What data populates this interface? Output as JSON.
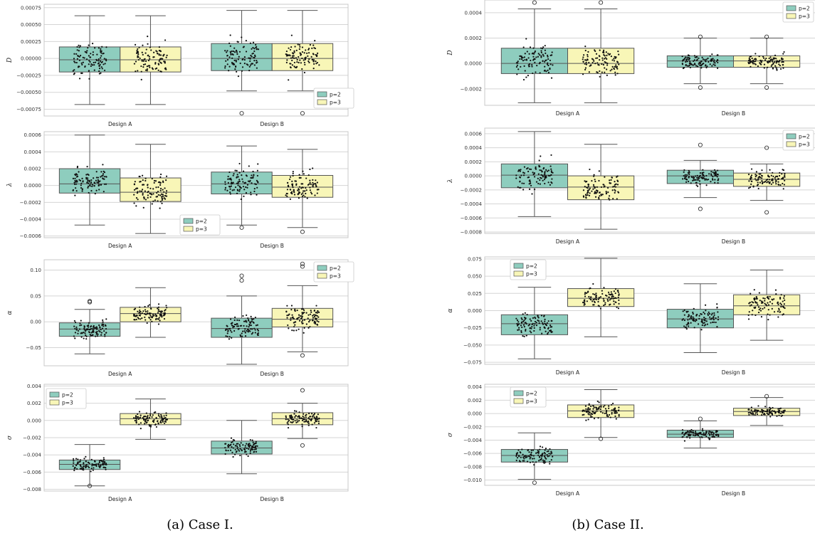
{
  "captions": [
    "(a) Case I.",
    "(b) Case II."
  ],
  "colors": {
    "p2": "#8ecdbe",
    "p3": "#f8f6b7",
    "edge": "#555555",
    "dot": "#111111",
    "grid": "#d5d5d5",
    "frame": "#c8c8c8"
  },
  "chart_data": [
    {
      "id": "I-D",
      "type": "box",
      "title": "",
      "xlabel": "",
      "ylabel": "D",
      "categories": [
        "Design A",
        "Design B"
      ],
      "ylim": [
        -0.00085,
        0.0008
      ],
      "yticks": [
        -0.00075,
        -0.0005,
        -0.00025,
        0.0,
        0.00025,
        0.0005,
        0.00075
      ],
      "yticklabels": [
        "−0.00075",
        "−0.00050",
        "−0.00025",
        "0.00000",
        "0.00025",
        "0.00050",
        "0.00075"
      ],
      "legend": {
        "position": "bottom-right",
        "entries": [
          "p=2",
          "p=3"
        ]
      },
      "series": [
        {
          "name": "p=2",
          "boxes": [
            {
              "whislo": -0.00068,
              "q1": -0.0002,
              "med": -2e-05,
              "q3": 0.00017,
              "whishi": 0.00063,
              "fliers": []
            },
            {
              "whislo": -0.00048,
              "q1": -0.00018,
              "med": 0.0,
              "q3": 0.00022,
              "whishi": 0.00071,
              "fliers": [
                -0.00081
              ]
            }
          ]
        },
        {
          "name": "p=3",
          "boxes": [
            {
              "whislo": -0.00068,
              "q1": -0.0002,
              "med": -2e-05,
              "q3": 0.00017,
              "whishi": 0.00063,
              "fliers": []
            },
            {
              "whislo": -0.00048,
              "q1": -0.00018,
              "med": 0.0,
              "q3": 0.00022,
              "whishi": 0.00071,
              "fliers": [
                -0.00081
              ]
            }
          ]
        }
      ]
    },
    {
      "id": "I-lambda",
      "type": "box",
      "title": "",
      "xlabel": "",
      "ylabel": "λ",
      "categories": [
        "Design A",
        "Design B"
      ],
      "ylim": [
        -0.00062,
        0.00064
      ],
      "yticks": [
        -0.0006,
        -0.0004,
        -0.0002,
        0.0,
        0.0002,
        0.0004,
        0.0006
      ],
      "yticklabels": [
        "−0.0006",
        "−0.0004",
        "−0.0002",
        "0.0000",
        "0.0002",
        "0.0004",
        "0.0006"
      ],
      "legend": {
        "position": "lower-center",
        "entries": [
          "p=2",
          "p=3"
        ]
      },
      "series": [
        {
          "name": "p=2",
          "boxes": [
            {
              "whislo": -0.00047,
              "q1": -9e-05,
              "med": 2e-05,
              "q3": 0.0002,
              "whishi": 0.0006,
              "fliers": []
            },
            {
              "whislo": -0.00047,
              "q1": -0.0001,
              "med": 2e-05,
              "q3": 0.00016,
              "whishi": 0.00047,
              "fliers": [
                -0.0005
              ]
            }
          ]
        },
        {
          "name": "p=3",
          "boxes": [
            {
              "whislo": -0.00057,
              "q1": -0.00019,
              "med": -8e-05,
              "q3": 9e-05,
              "whishi": 0.00049,
              "fliers": []
            },
            {
              "whislo": -0.0005,
              "q1": -0.00014,
              "med": -2e-05,
              "q3": 0.00012,
              "whishi": 0.00043,
              "fliers": [
                -0.00055
              ]
            }
          ]
        }
      ]
    },
    {
      "id": "I-alpha",
      "type": "box",
      "title": "",
      "xlabel": "",
      "ylabel": "α",
      "categories": [
        "Design A",
        "Design B"
      ],
      "ylim": [
        -0.085,
        0.12
      ],
      "yticks": [
        -0.05,
        0.0,
        0.05,
        0.1
      ],
      "yticklabels": [
        "−0.05",
        "0.00",
        "0.05",
        "0.10"
      ],
      "legend": {
        "position": "top-right",
        "entries": [
          "p=2",
          "p=3"
        ]
      },
      "series": [
        {
          "name": "p=2",
          "boxes": [
            {
              "whislo": -0.062,
              "q1": -0.028,
              "med": -0.014,
              "q3": -0.002,
              "whishi": 0.024,
              "fliers": [
                0.038,
                0.04
              ]
            },
            {
              "whislo": -0.082,
              "q1": -0.03,
              "med": -0.013,
              "q3": 0.007,
              "whishi": 0.05,
              "fliers": [
                0.08,
                0.089
              ]
            }
          ]
        },
        {
          "name": "p=3",
          "boxes": [
            {
              "whislo": -0.03,
              "q1": 0.0,
              "med": 0.016,
              "q3": 0.028,
              "whishi": 0.066,
              "fliers": []
            },
            {
              "whislo": -0.058,
              "q1": -0.01,
              "med": 0.005,
              "q3": 0.026,
              "whishi": 0.07,
              "fliers": [
                -0.065,
                0.107,
                0.112
              ]
            }
          ]
        }
      ]
    },
    {
      "id": "I-sigma",
      "type": "box",
      "title": "",
      "xlabel": "",
      "ylabel": "σ",
      "categories": [
        "Design A",
        "Design B"
      ],
      "ylim": [
        -0.0082,
        0.0042
      ],
      "yticks": [
        -0.008,
        -0.006,
        -0.004,
        -0.002,
        0.0,
        0.002,
        0.004
      ],
      "yticklabels": [
        "−0.008",
        "−0.006",
        "−0.004",
        "−0.002",
        "0.000",
        "0.002",
        "0.004"
      ],
      "legend": {
        "position": "top-left",
        "entries": [
          "p=2",
          "p=3"
        ]
      },
      "series": [
        {
          "name": "p=2",
          "boxes": [
            {
              "whislo": -0.0076,
              "q1": -0.0057,
              "med": -0.0051,
              "q3": -0.0046,
              "whishi": -0.0028,
              "fliers": [
                -0.0076
              ]
            },
            {
              "whislo": -0.0062,
              "q1": -0.0039,
              "med": -0.0032,
              "q3": -0.0024,
              "whishi": 0.0,
              "fliers": []
            }
          ]
        },
        {
          "name": "p=3",
          "boxes": [
            {
              "whislo": -0.0022,
              "q1": -0.0005,
              "med": 0.0002,
              "q3": 0.0008,
              "whishi": 0.0025,
              "fliers": []
            },
            {
              "whislo": -0.0021,
              "q1": -0.0005,
              "med": 0.0002,
              "q3": 0.0009,
              "whishi": 0.002,
              "fliers": [
                -0.0029,
                0.0035
              ]
            }
          ]
        }
      ]
    },
    {
      "id": "II-D",
      "type": "box",
      "title": "",
      "xlabel": "",
      "ylabel": "D",
      "categories": [
        "Design A",
        "Design B"
      ],
      "ylim": [
        -0.00033,
        0.0005
      ],
      "yticks": [
        -0.0002,
        0.0,
        0.0002,
        0.0004
      ],
      "yticklabels": [
        "−0.0002",
        "0.0000",
        "0.0002",
        "0.0004"
      ],
      "legend": {
        "position": "top-right",
        "entries": [
          "p=2",
          "p=3"
        ]
      },
      "series": [
        {
          "name": "p=2",
          "boxes": [
            {
              "whislo": -0.00031,
              "q1": -8e-05,
              "med": 0.0,
              "q3": 0.00012,
              "whishi": 0.00043,
              "fliers": [
                0.00048
              ]
            },
            {
              "whislo": -0.00016,
              "q1": -3e-05,
              "med": 2e-05,
              "q3": 6e-05,
              "whishi": 0.0002,
              "fliers": [
                -0.00019,
                0.00021
              ]
            }
          ]
        },
        {
          "name": "p=3",
          "boxes": [
            {
              "whislo": -0.00031,
              "q1": -8e-05,
              "med": 0.0,
              "q3": 0.00012,
              "whishi": 0.00043,
              "fliers": [
                0.00048
              ]
            },
            {
              "whislo": -0.00016,
              "q1": -3e-05,
              "med": 2e-05,
              "q3": 6e-05,
              "whishi": 0.0002,
              "fliers": [
                -0.00019,
                0.00021
              ]
            }
          ]
        }
      ]
    },
    {
      "id": "II-lambda",
      "type": "box",
      "title": "",
      "xlabel": "",
      "ylabel": "λ",
      "categories": [
        "Design A",
        "Design B"
      ],
      "ylim": [
        -0.00082,
        0.00068
      ],
      "yticks": [
        -0.0008,
        -0.0006,
        -0.0004,
        -0.0002,
        0.0,
        0.0002,
        0.0004,
        0.0006
      ],
      "yticklabels": [
        "−0.0008",
        "−0.0006",
        "−0.0004",
        "−0.0002",
        "0.0000",
        "0.0002",
        "0.0004",
        "0.0006"
      ],
      "legend": {
        "position": "top-right",
        "entries": [
          "p=2",
          "p=3"
        ]
      },
      "series": [
        {
          "name": "p=2",
          "boxes": [
            {
              "whislo": -0.00058,
              "q1": -0.00017,
              "med": 1e-05,
              "q3": 0.00017,
              "whishi": 0.00063,
              "fliers": []
            },
            {
              "whislo": -0.00031,
              "q1": -0.00011,
              "med": 0.0,
              "q3": 8e-05,
              "whishi": 0.00022,
              "fliers": [
                -0.00047,
                0.00044
              ]
            }
          ]
        },
        {
          "name": "p=3",
          "boxes": [
            {
              "whislo": -0.00076,
              "q1": -0.00034,
              "med": -0.00016,
              "q3": 0.0,
              "whishi": 0.00045,
              "fliers": []
            },
            {
              "whislo": -0.00035,
              "q1": -0.00015,
              "med": -5e-05,
              "q3": 4e-05,
              "whishi": 0.00017,
              "fliers": [
                -0.00052,
                0.0004
              ]
            }
          ]
        }
      ]
    },
    {
      "id": "II-alpha",
      "type": "box",
      "title": "",
      "xlabel": "",
      "ylabel": "α",
      "categories": [
        "Design A",
        "Design B"
      ],
      "ylim": [
        -0.078,
        0.078
      ],
      "yticks": [
        -0.075,
        -0.05,
        -0.025,
        0.0,
        0.025,
        0.05,
        0.075
      ],
      "yticklabels": [
        "−0.075",
        "−0.050",
        "−0.025",
        "0.000",
        "0.025",
        "0.050",
        "0.075"
      ],
      "legend": {
        "position": "top-left",
        "entries": [
          "p=2",
          "p=3"
        ]
      },
      "series": [
        {
          "name": "p=2",
          "boxes": [
            {
              "whislo": -0.07,
              "q1": -0.035,
              "med": -0.019,
              "q3": -0.006,
              "whishi": 0.034,
              "fliers": []
            },
            {
              "whislo": -0.061,
              "q1": -0.025,
              "med": -0.012,
              "q3": 0.002,
              "whishi": 0.039,
              "fliers": []
            }
          ]
        },
        {
          "name": "p=3",
          "boxes": [
            {
              "whislo": -0.038,
              "q1": 0.006,
              "med": 0.018,
              "q3": 0.032,
              "whishi": 0.076,
              "fliers": []
            },
            {
              "whislo": -0.043,
              "q1": -0.006,
              "med": 0.007,
              "q3": 0.023,
              "whishi": 0.059,
              "fliers": []
            }
          ]
        }
      ]
    },
    {
      "id": "II-sigma",
      "type": "box",
      "title": "",
      "xlabel": "",
      "ylabel": "σ",
      "categories": [
        "Design A",
        "Design B"
      ],
      "ylim": [
        -0.0108,
        0.0044
      ],
      "yticks": [
        -0.01,
        -0.008,
        -0.006,
        -0.004,
        -0.002,
        0.0,
        0.002,
        0.004
      ],
      "yticklabels": [
        "−0.010",
        "−0.008",
        "−0.006",
        "−0.004",
        "−0.002",
        "0.000",
        "0.002",
        "0.004"
      ],
      "legend": {
        "position": "top-left",
        "entries": [
          "p=2",
          "p=3"
        ]
      },
      "series": [
        {
          "name": "p=2",
          "boxes": [
            {
              "whislo": -0.0099,
              "q1": -0.0073,
              "med": -0.0063,
              "q3": -0.0054,
              "whishi": -0.0029,
              "fliers": [
                -0.0104
              ]
            },
            {
              "whislo": -0.0052,
              "q1": -0.0036,
              "med": -0.0031,
              "q3": -0.0025,
              "whishi": -0.0011,
              "fliers": [
                -0.0008
              ]
            }
          ]
        },
        {
          "name": "p=3",
          "boxes": [
            {
              "whislo": -0.0036,
              "q1": -0.0006,
              "med": 0.0004,
              "q3": 0.0013,
              "whishi": 0.0036,
              "fliers": [
                -0.0038
              ]
            },
            {
              "whislo": -0.0018,
              "q1": -0.0003,
              "med": 0.0003,
              "q3": 0.0008,
              "whishi": 0.0024,
              "fliers": [
                0.0026
              ]
            }
          ]
        }
      ]
    }
  ]
}
